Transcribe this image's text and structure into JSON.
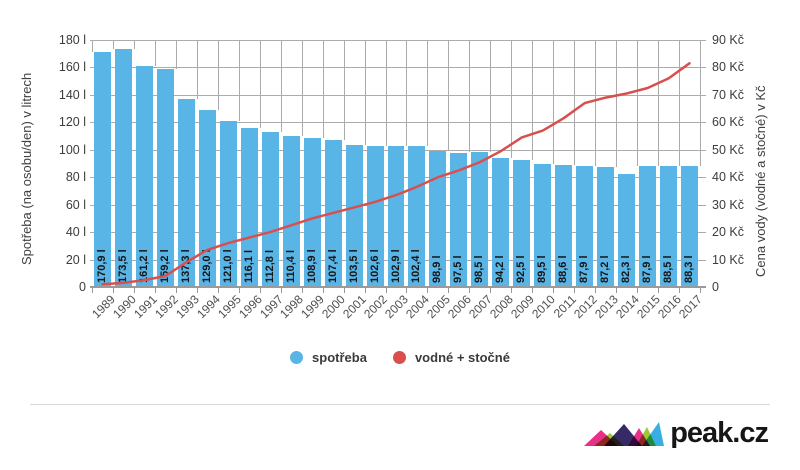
{
  "chart_data": {
    "type": "bar",
    "subtype": "bar+line combo",
    "categories": [
      "1989",
      "1990",
      "1991",
      "1992",
      "1993",
      "1994",
      "1995",
      "1996",
      "1997",
      "1998",
      "1999",
      "2000",
      "2001",
      "2002",
      "2003",
      "2004",
      "2005",
      "2006",
      "2007",
      "2008",
      "2009",
      "2010",
      "2011",
      "2012",
      "2013",
      "2014",
      "2015",
      "2016",
      "2017"
    ],
    "series": [
      {
        "name": "spotřeba",
        "type": "bar",
        "y_axis": "left",
        "unit": "l",
        "color": "#5AB5E7",
        "values": [
          170.9,
          173.5,
          161.2,
          159.2,
          137.3,
          129.0,
          121.0,
          116.1,
          112.8,
          110.4,
          108.9,
          107.4,
          103.5,
          102.6,
          102.9,
          102.4,
          98.9,
          97.5,
          98.5,
          94.2,
          92.5,
          89.5,
          88.6,
          87.9,
          87.2,
          82.3,
          87.9,
          88.5,
          88.3
        ],
        "labels": [
          "170,9 l",
          "173,5 l",
          "161,2 l",
          "159,2 l",
          "137,3 l",
          "129,0 l",
          "121,0 l",
          "116,1 l",
          "112,8 l",
          "110,4 l",
          "108,9 l",
          "107,4 l",
          "103,5 l",
          "102,6 l",
          "102,9 l",
          "102,4 l",
          "98,9 l",
          "97,5 l",
          "98,5 l",
          "94,2 l",
          "92,5 l",
          "89,5 l",
          "88,6 l",
          "87,9 l",
          "87,2 l",
          "82,3 l",
          "87,9 l",
          "88,5 l",
          "88,3 l"
        ]
      },
      {
        "name": "vodné + stočné",
        "type": "line",
        "y_axis": "right",
        "unit": "Kč",
        "color": "#D8504D",
        "values": [
          1,
          1.5,
          2.5,
          4,
          9,
          13.5,
          16,
          18,
          20,
          22.5,
          25,
          27,
          29,
          31,
          33.5,
          36.5,
          40,
          42.5,
          45.5,
          49.5,
          54.5,
          57,
          61.5,
          67,
          69,
          70.5,
          72.5,
          76,
          81.5
        ]
      }
    ],
    "left_axis": {
      "title": "Spotřeba (na osobu/den) v litrech",
      "min": 0,
      "max": 180,
      "step": 20,
      "ticks": [
        "180 l",
        "160 l",
        "140 l",
        "120 l",
        "100 l",
        "80 l",
        "60 l",
        "40 l",
        "20 l",
        "0"
      ]
    },
    "right_axis": {
      "title": "Cena vody (vodné a stočné) v Kč",
      "min": 0,
      "max": 90,
      "step": 10,
      "ticks": [
        "90 Kč",
        "80 Kč",
        "70 Kč",
        "60 Kč",
        "50 Kč",
        "40 Kč",
        "30 Kč",
        "20 Kč",
        "10 Kč",
        "0"
      ]
    },
    "title": "",
    "grid": true,
    "legend_position": "bottom",
    "x_tick_rotation": -45
  },
  "colors": {
    "background": "#FFFFFF",
    "grid": "#ABABAB",
    "axis": "#9A9A9A",
    "bar_label_text": "#161616",
    "tick_text": "#3C3C3C",
    "year_text": "#4F4F4F",
    "divider": "#D9D9D9"
  },
  "branding": {
    "logo_text": "peak.cz",
    "logo_text_color": "#161616",
    "logo_colors": [
      "#E8308A",
      "#9BC93C",
      "#352A66",
      "#E8308A",
      "#9BC93C",
      "#38AFE4"
    ]
  }
}
